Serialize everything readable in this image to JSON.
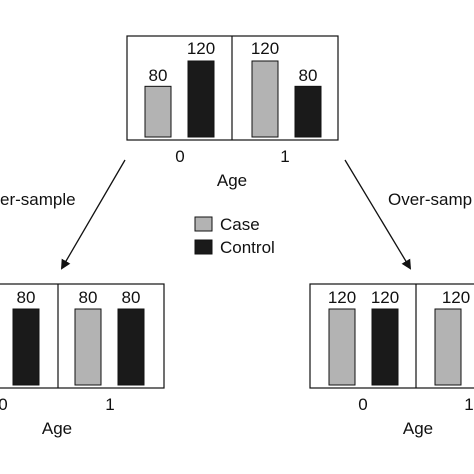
{
  "colors": {
    "case": "#b3b3b3",
    "control": "#1a1a1a",
    "stroke": "#111111"
  },
  "legend": {
    "case_label": "Case",
    "control_label": "Control"
  },
  "arrows": {
    "left_label": "er-sample",
    "right_label": "Over-samp"
  },
  "chart_data": [
    {
      "type": "bar",
      "xlabel": "Age",
      "categories": [
        "0",
        "1"
      ],
      "series": [
        {
          "name": "Case",
          "values": [
            80,
            120
          ]
        },
        {
          "name": "Control",
          "values": [
            120,
            80
          ]
        }
      ],
      "value_labels": [
        "80",
        "120",
        "120",
        "80"
      ]
    },
    {
      "type": "bar",
      "xlabel": "Age",
      "categories": [
        "0",
        "1"
      ],
      "series": [
        {
          "name": "Case",
          "values": [
            null,
            80
          ]
        },
        {
          "name": "Control",
          "values": [
            80,
            80
          ]
        }
      ],
      "value_labels": [
        "80",
        "80",
        "80"
      ]
    },
    {
      "type": "bar",
      "xlabel": "Age",
      "categories": [
        "0",
        "1"
      ],
      "series": [
        {
          "name": "Case",
          "values": [
            120,
            120
          ]
        },
        {
          "name": "Control",
          "values": [
            120,
            null
          ]
        }
      ],
      "value_labels": [
        "120",
        "120",
        "120"
      ]
    }
  ]
}
